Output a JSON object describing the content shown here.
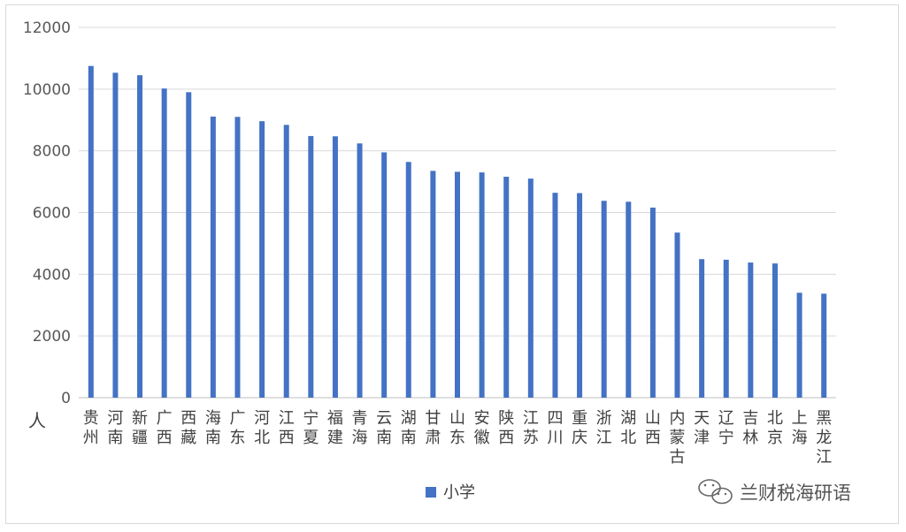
{
  "chart_data": {
    "type": "bar",
    "ylabel": "人",
    "ylim": [
      0,
      12000
    ],
    "yticks": [
      "0",
      "2000",
      "4000",
      "6000",
      "8000",
      "10000",
      "12000"
    ],
    "grid": "horizontal",
    "legend_position": "bottom",
    "categories": [
      "贵州",
      "河南",
      "新疆",
      "广西",
      "西藏",
      "海南",
      "广东",
      "河北",
      "江西",
      "宁夏",
      "福建",
      "青海",
      "云南",
      "湖南",
      "甘肃",
      "山东",
      "安徽",
      "陕西",
      "江苏",
      "四川",
      "重庆",
      "浙江",
      "湖北",
      "山西",
      "内蒙古",
      "天津",
      "辽宁",
      "吉林",
      "北京",
      "上海",
      "黑龙江"
    ],
    "series": [
      {
        "name": "小学",
        "color": "#4472c4",
        "values": [
          10750,
          10530,
          10450,
          10020,
          9900,
          9110,
          9100,
          8960,
          8840,
          8480,
          8470,
          8240,
          7950,
          7640,
          7350,
          7320,
          7300,
          7160,
          7100,
          6640,
          6630,
          6380,
          6350,
          6160,
          5350,
          4490,
          4470,
          4380,
          4350,
          3400,
          3370
        ]
      }
    ]
  },
  "watermark": {
    "text": "兰财税海研语",
    "icon": "wechat-icon"
  }
}
